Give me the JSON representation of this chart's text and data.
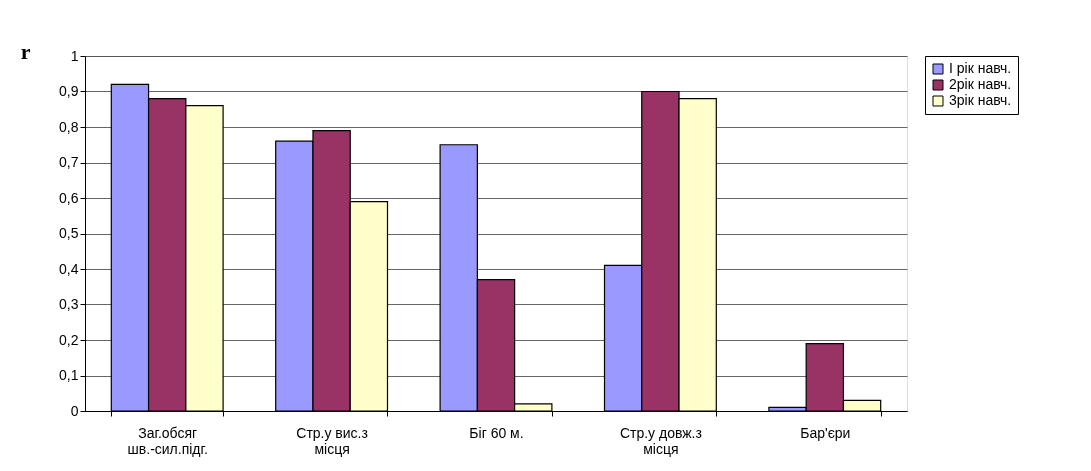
{
  "chart_data": {
    "type": "bar",
    "ylabel": "r",
    "categories": [
      "Заг.обсяг\nшв.-сил.підг.",
      "Стр.у вис.з\nмісця",
      "Біг 60 м.",
      "Стр.у довж.з\nмісця",
      "Бар'єри"
    ],
    "series": [
      {
        "name": "І рік навч.",
        "color": "#9999ff",
        "values": [
          0.92,
          0.76,
          0.75,
          0.41,
          0.01
        ]
      },
      {
        "name": "2рік навч.",
        "color": "#993366",
        "values": [
          0.88,
          0.79,
          0.37,
          0.9,
          0.19
        ]
      },
      {
        "name": "3рік навч.",
        "color": "#ffffcc",
        "values": [
          0.86,
          0.59,
          0.02,
          0.88,
          0.03
        ]
      }
    ],
    "ylim": [
      0,
      1
    ],
    "yticks": [
      0,
      {
        "value": 0.1,
        "label": "0,1"
      },
      {
        "value": 0.2,
        "label": "0,2"
      },
      {
        "value": 0.3,
        "label": "0,3"
      },
      {
        "value": 0.4,
        "label": "0,4"
      },
      {
        "value": 0.5,
        "label": "0,5"
      },
      {
        "value": 0.6,
        "label": "0,6"
      },
      {
        "value": 0.7,
        "label": "0,7"
      },
      {
        "value": 0.8,
        "label": "0,8"
      },
      {
        "value": 0.9,
        "label": "0,9"
      },
      1
    ],
    "grid": "y",
    "legend": "right"
  }
}
